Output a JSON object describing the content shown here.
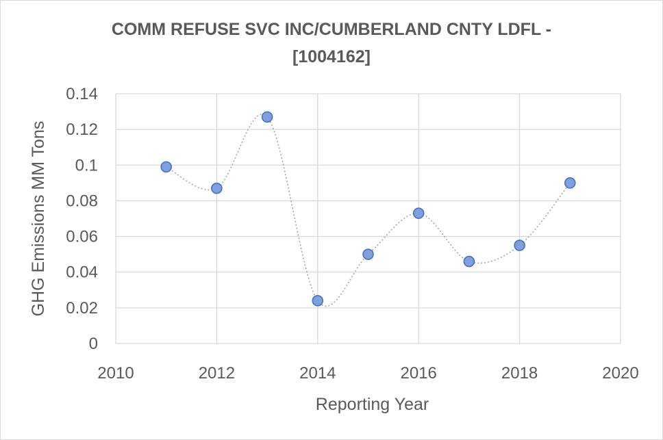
{
  "chart_data": {
    "type": "scatter",
    "title_line1": "COMM REFUSE SVC INC/CUMBERLAND CNTY LDFL -",
    "title_line2": "[1004162]",
    "xlabel": "Reporting Year",
    "ylabel": "GHG Emissions MM Tons",
    "xlim": [
      2010,
      2020
    ],
    "ylim": [
      0,
      0.14
    ],
    "x_ticks": [
      "2010",
      "2012",
      "2014",
      "2016",
      "2018",
      "2020"
    ],
    "y_ticks": [
      "0",
      "0.02",
      "0.04",
      "0.06",
      "0.08",
      "0.1",
      "0.12",
      "0.14"
    ],
    "grid": true,
    "series": [
      {
        "name": "GHG Emissions",
        "x": [
          2011,
          2012,
          2013,
          2014,
          2015,
          2016,
          2017,
          2018,
          2019
        ],
        "y": [
          0.099,
          0.087,
          0.127,
          0.024,
          0.05,
          0.073,
          0.046,
          0.055,
          0.09
        ]
      }
    ],
    "colors": {
      "marker_fill": "#7f9fde",
      "marker_stroke": "#4472c4",
      "line": "#a6a6a6",
      "grid": "#d9d9d9",
      "text": "#595959"
    }
  }
}
